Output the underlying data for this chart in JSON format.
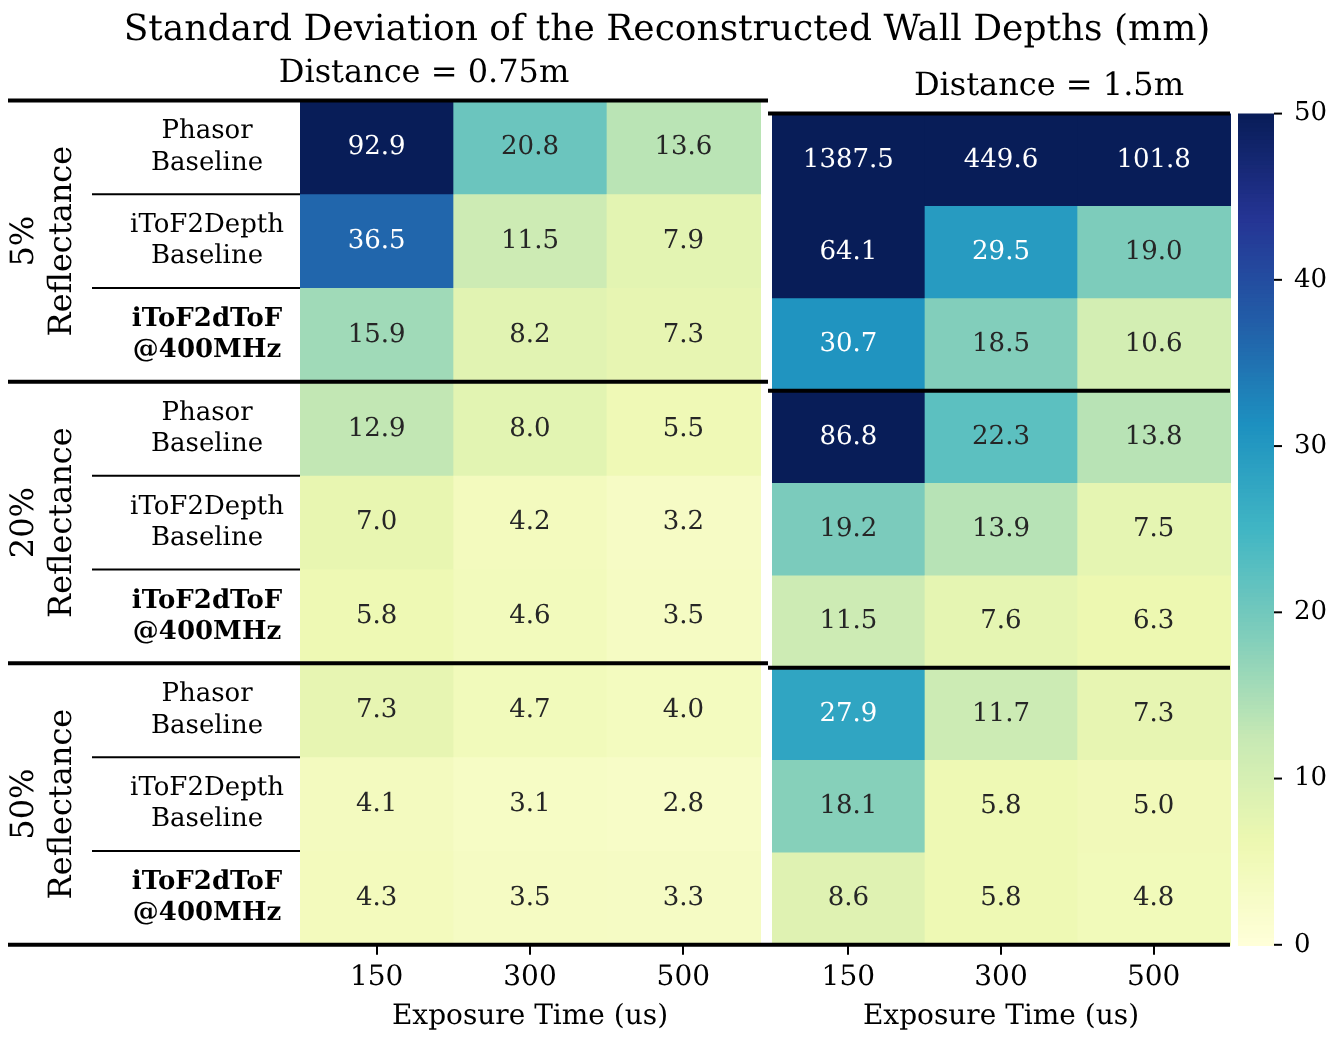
{
  "chart_data": [
    {
      "type": "heatmap",
      "title": "Standard Deviation of the Reconstructed Wall Depths (mm)",
      "subtitle": "Distance = 0.75m",
      "xlabel": "Exposure Time (us)",
      "categories": [
        "150",
        "300",
        "500"
      ],
      "y_categories": [
        "Phasor Baseline",
        "iToF2Depth Baseline",
        "iToF2dToF @400MHz",
        "Phasor Baseline",
        "iToF2Depth Baseline",
        "iToF2dToF @400MHz",
        "Phasor Baseline",
        "iToF2Depth Baseline",
        "iToF2dToF @400MHz"
      ],
      "cells": [
        [
          92.9,
          20.8,
          13.6
        ],
        [
          36.5,
          11.5,
          7.9
        ],
        [
          15.9,
          8.2,
          7.3
        ],
        [
          12.9,
          8.0,
          5.5
        ],
        [
          7.0,
          4.2,
          3.2
        ],
        [
          5.8,
          4.6,
          3.5
        ],
        [
          7.3,
          4.7,
          4.0
        ],
        [
          4.1,
          3.1,
          2.8
        ],
        [
          4.3,
          3.5,
          3.3
        ]
      ],
      "cell_labels": [
        [
          "92.9",
          "20.8",
          "13.6"
        ],
        [
          "36.5",
          "11.5",
          "7.9"
        ],
        [
          "15.9",
          "8.2",
          "7.3"
        ],
        [
          "12.9",
          "8.0",
          "5.5"
        ],
        [
          "7.0",
          "4.2",
          "3.2"
        ],
        [
          "5.8",
          "4.6",
          "3.5"
        ],
        [
          "7.3",
          "4.7",
          "4.0"
        ],
        [
          "4.1",
          "3.1",
          "2.8"
        ],
        [
          "4.3",
          "3.5",
          "3.3"
        ]
      ],
      "data_labels": true,
      "annotations": [
        "5% Reflectance",
        "20% Reflectance",
        "50% Reflectance"
      ]
    },
    {
      "type": "heatmap",
      "subtitle": "Distance = 1.5m",
      "xlabel": "Exposure Time (us)",
      "categories": [
        "150",
        "300",
        "500"
      ],
      "y_categories": [
        null,
        null,
        null,
        null,
        null,
        null,
        null,
        null,
        null
      ],
      "cells": [
        [
          1387.5,
          449.6,
          101.8
        ],
        [
          64.1,
          29.5,
          19.0
        ],
        [
          30.7,
          18.5,
          10.6
        ],
        [
          86.8,
          22.3,
          13.8
        ],
        [
          19.2,
          13.9,
          7.5
        ],
        [
          11.5,
          7.6,
          6.3
        ],
        [
          27.9,
          11.7,
          7.3
        ],
        [
          18.1,
          5.8,
          5.0
        ],
        [
          8.6,
          5.8,
          4.8
        ]
      ],
      "cell_labels": [
        [
          "1387.5",
          "449.6",
          "101.8"
        ],
        [
          "64.1",
          "29.5",
          "19.0"
        ],
        [
          "30.7",
          "18.5",
          "10.6"
        ],
        [
          "86.8",
          "22.3",
          "13.8"
        ],
        [
          "19.2",
          "13.9",
          "7.5"
        ],
        [
          "11.5",
          "7.6",
          "6.3"
        ],
        [
          "27.9",
          "11.7",
          "7.3"
        ],
        [
          "18.1",
          "5.8",
          "5.0"
        ],
        [
          "8.6",
          "5.8",
          "4.8"
        ]
      ],
      "clim": [
        0,
        50
      ],
      "cticks": [
        0,
        10,
        20,
        30,
        40,
        50
      ],
      "data_labels": true,
      "tick_labels": "x"
    }
  ]
}
